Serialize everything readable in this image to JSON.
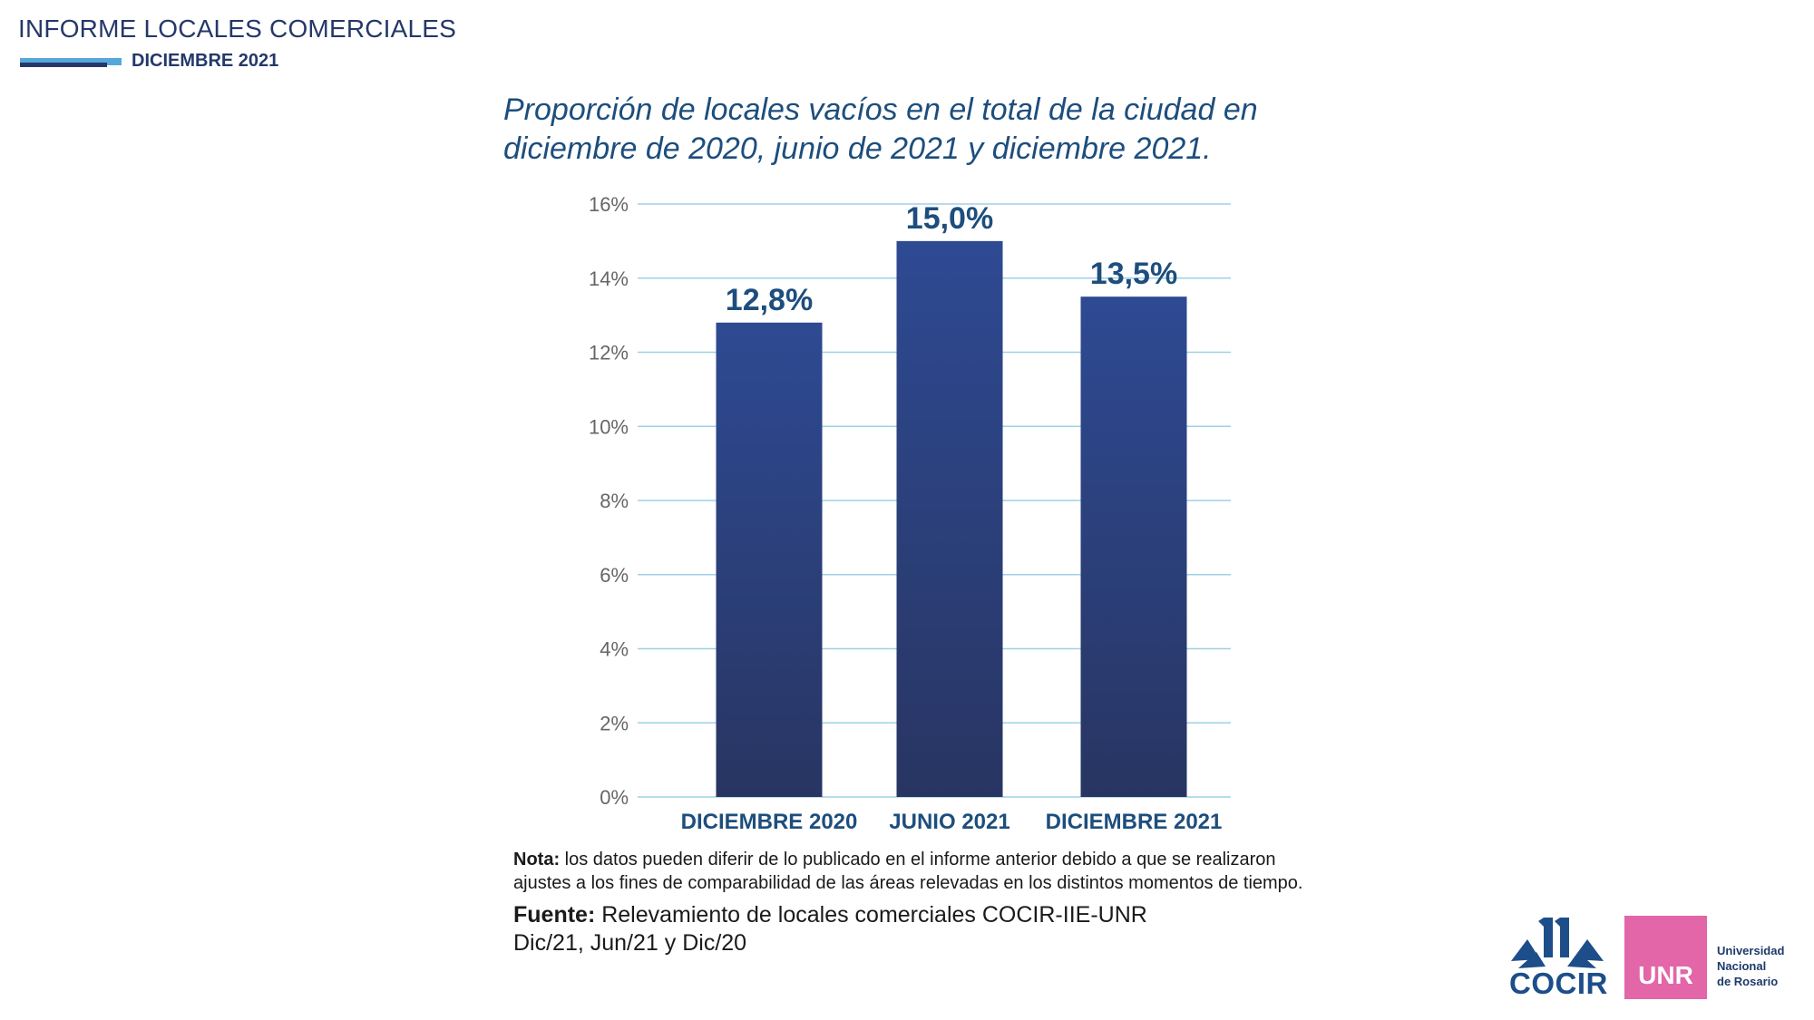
{
  "header": {
    "title": "INFORME LOCALES COMERCIALES",
    "subtitle": "DICIEMBRE 2021"
  },
  "chart_title": "Proporción de locales vacíos en el total de la ciudad en diciembre de 2020, junio de 2021 y diciembre 2021.",
  "chart_data": {
    "type": "bar",
    "title": "Proporción de locales vacíos en el total de la ciudad en diciembre de 2020, junio de 2021 y diciembre 2021.",
    "categories": [
      "DICIEMBRE 2020",
      "JUNIO 2021",
      "DICIEMBRE 2021"
    ],
    "values": [
      12.8,
      15.0,
      13.5
    ],
    "value_labels": [
      "12,8%",
      "15,0%",
      "13,5%"
    ],
    "ylim": [
      0,
      16
    ],
    "yticks": [
      0,
      2,
      4,
      6,
      8,
      10,
      12,
      14,
      16
    ],
    "ytick_labels": [
      "0%",
      "2%",
      "4%",
      "6%",
      "8%",
      "10%",
      "12%",
      "14%",
      "16%"
    ],
    "grid": true,
    "xlabel": "",
    "ylabel": "",
    "colors": {
      "bar_top": "#2e4a93",
      "bar_bottom": "#283562",
      "grid": "#9fd0e6",
      "label": "#1d4e7d",
      "tick": "#666666"
    }
  },
  "notes": {
    "nota_label": "Nota:",
    "nota_line1": " los datos pueden diferir de lo publicado en el informe anterior debido a que se realizaron",
    "nota_line2": "ajustes a los fines de comparabilidad de las áreas relevadas en los distintos momentos de tiempo.",
    "fuente_label": "Fuente:",
    "fuente_line1": " Relevamiento de locales comerciales COCIR-IIE-UNR",
    "fuente_line2": "Dic/21, Jun/21 y Dic/20"
  },
  "logos": {
    "cocir": "COCIR",
    "unr": "UNR",
    "unr_name": [
      "Universidad",
      "Nacional",
      "de Rosario"
    ]
  }
}
